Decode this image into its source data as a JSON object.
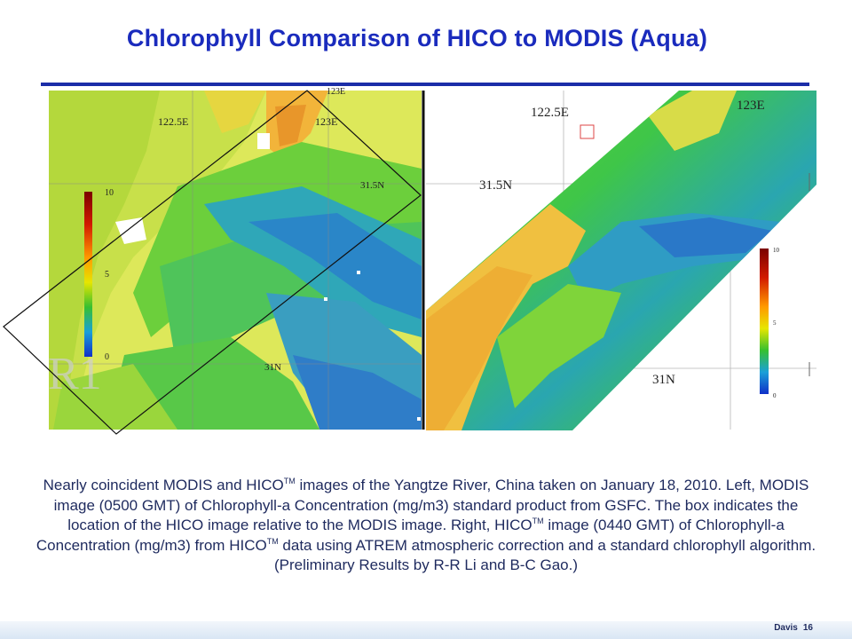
{
  "title": "Chlorophyll Comparison of HICO to MODIS (Aqua)",
  "left_map": {
    "labels": {
      "lon_a": "122.5E",
      "lon_b": "123E",
      "lon_top": "123E",
      "lat_a": "31.5N",
      "lat_b": "31N"
    },
    "colorbar": {
      "max": "10",
      "mid": "5",
      "min": "0"
    },
    "watermark": "R1"
  },
  "right_map": {
    "labels": {
      "lon_a": "122.5E",
      "lon_b": "123E",
      "lat_a": "31.5N",
      "lat_b": "31N"
    },
    "colorbar": {
      "max": "10",
      "mid": "5",
      "min": "0"
    }
  },
  "caption": {
    "p1": "Nearly coincident MODIS and HICO",
    "tm1": "TM",
    "p2": " images of the Yangtze River, China taken on January 18, 2010. Left, MODIS image (0500 GMT) of Chlorophyll-a Concentration (mg/m3) standard product from GSFC.  The box indicates the location of the HICO image relative to the MODIS image.  Right, HICO",
    "tm2": "TM",
    "p3": " image (0440 GMT) of Chlorophyll-a Concentration (mg/m3) from HICO",
    "tm3": "TM",
    "p4": " data using ATREM atmospheric correction and a standard chlorophyll algorithm.  (Preliminary Results by R-R Li and B-C Gao.)"
  },
  "footer": {
    "author": "Davis",
    "page": "16"
  }
}
